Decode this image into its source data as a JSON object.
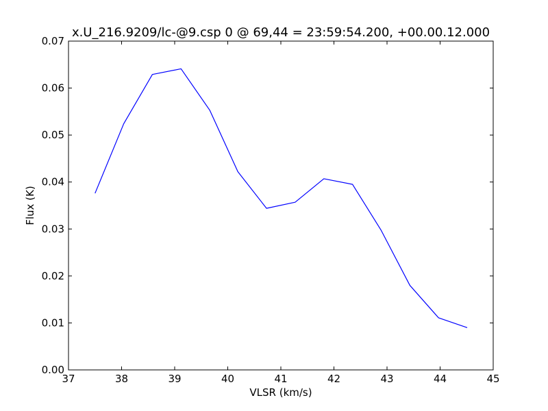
{
  "chart_data": {
    "type": "line",
    "title": "x.U_216.9209/lc-@9.csp 0 @ 69,44 = 23:59:54.200, +00.00.12.000",
    "xlabel": "VLSR (km/s)",
    "ylabel": "Flux (K)",
    "xlim": [
      37,
      45
    ],
    "ylim": [
      0,
      0.07
    ],
    "xticks": [
      37,
      38,
      39,
      40,
      41,
      42,
      43,
      44,
      45
    ],
    "xtick_labels": [
      "37",
      "38",
      "39",
      "40",
      "41",
      "42",
      "43",
      "44",
      "45"
    ],
    "yticks": [
      0,
      0.01,
      0.02,
      0.03,
      0.04,
      0.05,
      0.06,
      0.07
    ],
    "ytick_labels": [
      "0.00",
      "0.01",
      "0.02",
      "0.03",
      "0.04",
      "0.05",
      "0.06",
      "0.07"
    ],
    "grid": false,
    "line_color": "#0000ff",
    "x": [
      37.5,
      38.04,
      38.58,
      39.12,
      39.66,
      40.19,
      40.73,
      41.27,
      41.81,
      42.35,
      42.89,
      43.43,
      43.97,
      44.51
    ],
    "y": [
      0.0376,
      0.0524,
      0.0629,
      0.0641,
      0.0553,
      0.0422,
      0.0344,
      0.0357,
      0.0407,
      0.0395,
      0.0297,
      0.018,
      0.0111,
      0.009
    ]
  }
}
